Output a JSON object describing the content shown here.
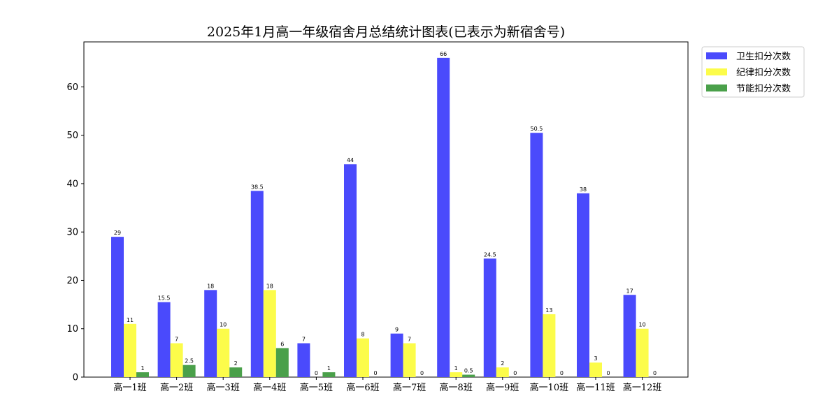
{
  "chart_data": {
    "type": "bar",
    "title": "2025年1月高一年级宿舍月总结统计图表(已表示为新宿舍号)",
    "xlabel": "",
    "ylabel": "",
    "categories": [
      "高一1班",
      "高一2班",
      "高一3班",
      "高一4班",
      "高一5班",
      "高一6班",
      "高一7班",
      "高一8班",
      "高一9班",
      "高一10班",
      "高一11班",
      "高一12班"
    ],
    "series": [
      {
        "name": "卫生扣分次数",
        "color": "#4a4afc",
        "values": [
          29,
          15.5,
          18,
          38.5,
          7,
          44,
          9,
          66,
          24.5,
          50.5,
          38,
          17
        ]
      },
      {
        "name": "纪律扣分次数",
        "color": "#fcfc4a",
        "values": [
          11,
          7,
          10,
          18,
          0,
          8,
          7,
          1,
          2,
          13,
          3,
          10
        ]
      },
      {
        "name": "节能扣分次数",
        "color": "#4aa04a",
        "values": [
          1,
          2.5,
          2,
          6,
          1,
          0,
          0,
          0.5,
          0,
          0,
          0,
          0
        ]
      }
    ],
    "ylim": [
      0,
      69.3
    ],
    "yticks": [
      0,
      10,
      20,
      30,
      40,
      50,
      60
    ],
    "grid": false,
    "legend_position": "outside top-right"
  }
}
